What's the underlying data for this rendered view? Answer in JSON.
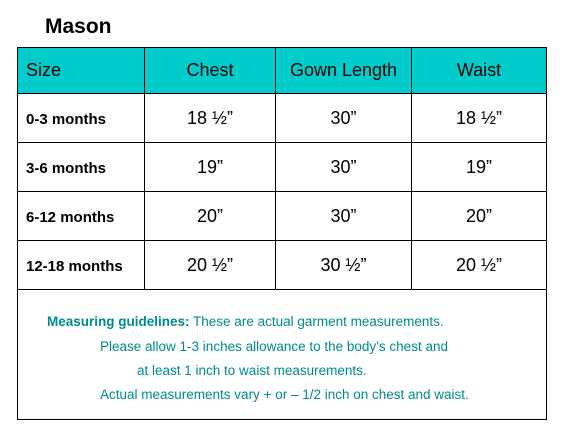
{
  "title": "Mason",
  "table": {
    "headers": [
      "Size",
      "Chest",
      "Gown Length",
      "Waist"
    ],
    "rows": [
      {
        "size": "0-3 months",
        "chest": "18 ½”",
        "gown_length": "30”",
        "waist": "18 ½”"
      },
      {
        "size": "3-6 months",
        "chest": "19”",
        "gown_length": "30”",
        "waist": "19”"
      },
      {
        "size": "6-12 months",
        "chest": "20”",
        "gown_length": "30”",
        "waist": "20”"
      },
      {
        "size": "12-18 months",
        "chest": "20 ½”",
        "gown_length": "30 ½”",
        "waist": "20 ½”"
      }
    ]
  },
  "guidelines": {
    "label": "Measuring guidelines:",
    "line1": " These are actual garment measurements.",
    "line2": "Please allow 1-3 inches allowance to the body’s chest and",
    "line3": "at least 1 inch to waist measurements.",
    "line4": "Actual measurements vary + or – 1/2 inch on chest and waist."
  },
  "colors": {
    "header_bg": "#00cccc",
    "guideline_text": "#008b8b"
  }
}
